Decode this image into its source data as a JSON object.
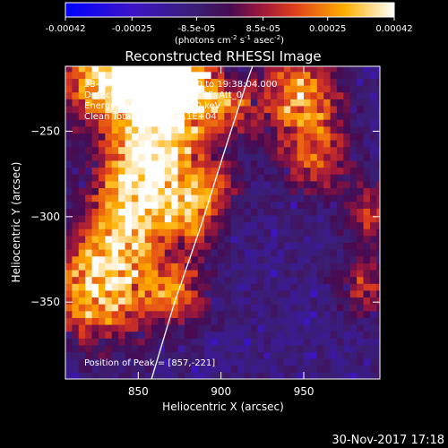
{
  "chart_data": {
    "type": "heatmap",
    "title": "Reconstructed RHESSI Image",
    "xlabel": "Heliocentric X (arcsec)",
    "ylabel": "Heliocentric Y (arcsec)",
    "xlim": [
      806,
      996
    ],
    "ylim": [
      -395,
      -212
    ],
    "x_ticks": [
      850,
      900,
      950
    ],
    "y_ticks": [
      -250,
      -300,
      -350
    ],
    "colorbar": {
      "min": -0.00042,
      "max": 0.00042,
      "ticks": [
        "-0.00042",
        "-0.00025",
        "-8.5e-05",
        "8.5e-05",
        "0.00025",
        "0.00042"
      ],
      "tick_values": [
        -0.00042,
        -0.00025,
        -8.5e-05,
        8.5e-05,
        0.00025,
        0.00042
      ],
      "units_parts": [
        "(photons cm",
        "-2",
        " s",
        "-1",
        " asec",
        "-2",
        ")"
      ]
    },
    "info_lines": [
      "23-Jun-2015 19:28:04.000 to 19:38:04.000",
      "Detectors: 3F 5F 6F 7F 8F 9F, Att_0",
      "Energy Range: 12.0 - 25.0 keV",
      "Clean    Total counts: 1.11E+04"
    ],
    "peak_label": "Position of Peak = [857,-221]",
    "peak": [
      857,
      -221
    ],
    "limb_points": [
      [
        858,
        -395
      ],
      [
        872,
        -350
      ],
      [
        888,
        -305
      ],
      [
        902,
        -262
      ],
      [
        916,
        -220
      ],
      [
        919,
        -212
      ]
    ]
  },
  "footer": {
    "date": "30-Nov-2017 17:18"
  }
}
